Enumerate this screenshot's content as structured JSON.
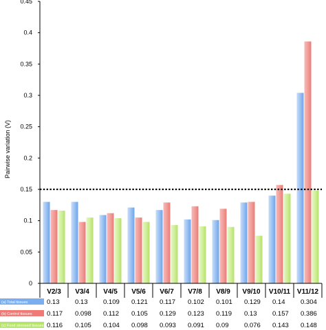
{
  "chart_data": {
    "type": "bar",
    "ylabel": "Pairwise variation (V)",
    "ylim": [
      0,
      0.45
    ],
    "yticks": [
      "0",
      "0.05",
      "0.1",
      "0.15",
      "0.2",
      "0.25",
      "0.3",
      "0.35",
      "0.4",
      "0.45"
    ],
    "categories": [
      "V2/3",
      "V3/4",
      "V4/5",
      "V5/6",
      "V6/7",
      "V7/8",
      "V8/9",
      "V9/10",
      "V10/11",
      "V11/12"
    ],
    "threshold": 0.15,
    "series": [
      {
        "name": "(a) Total tissues",
        "color": "#7aaef0",
        "values": [
          0.13,
          0.13,
          0.109,
          0.121,
          0.117,
          0.102,
          0.101,
          0.129,
          0.14,
          0.304
        ],
        "labels": [
          "0.13",
          "0.13",
          "0.109",
          "0.121",
          "0.117",
          "0.102",
          "0.101",
          "0.129",
          "0.14",
          "0.304"
        ]
      },
      {
        "name": "(b) Control tissues",
        "color": "#ef7a76",
        "values": [
          0.117,
          0.098,
          0.112,
          0.105,
          0.129,
          0.123,
          0.119,
          0.13,
          0.157,
          0.386
        ],
        "labels": [
          "0.117",
          "0.098",
          "0.112",
          "0.105",
          "0.129",
          "0.123",
          "0.119",
          "0.13",
          "0.157",
          "0.386"
        ]
      },
      {
        "name": "(c) Food stressed tissues",
        "color": "#b7e46c",
        "values": [
          0.116,
          0.105,
          0.104,
          0.098,
          0.093,
          0.091,
          0.09,
          0.076,
          0.143,
          0.148
        ],
        "labels": [
          "0.116",
          "0.105",
          "0.104",
          "0.098",
          "0.093",
          "0.091",
          "0.09",
          "0.076",
          "0.143",
          "0.148"
        ]
      }
    ]
  }
}
